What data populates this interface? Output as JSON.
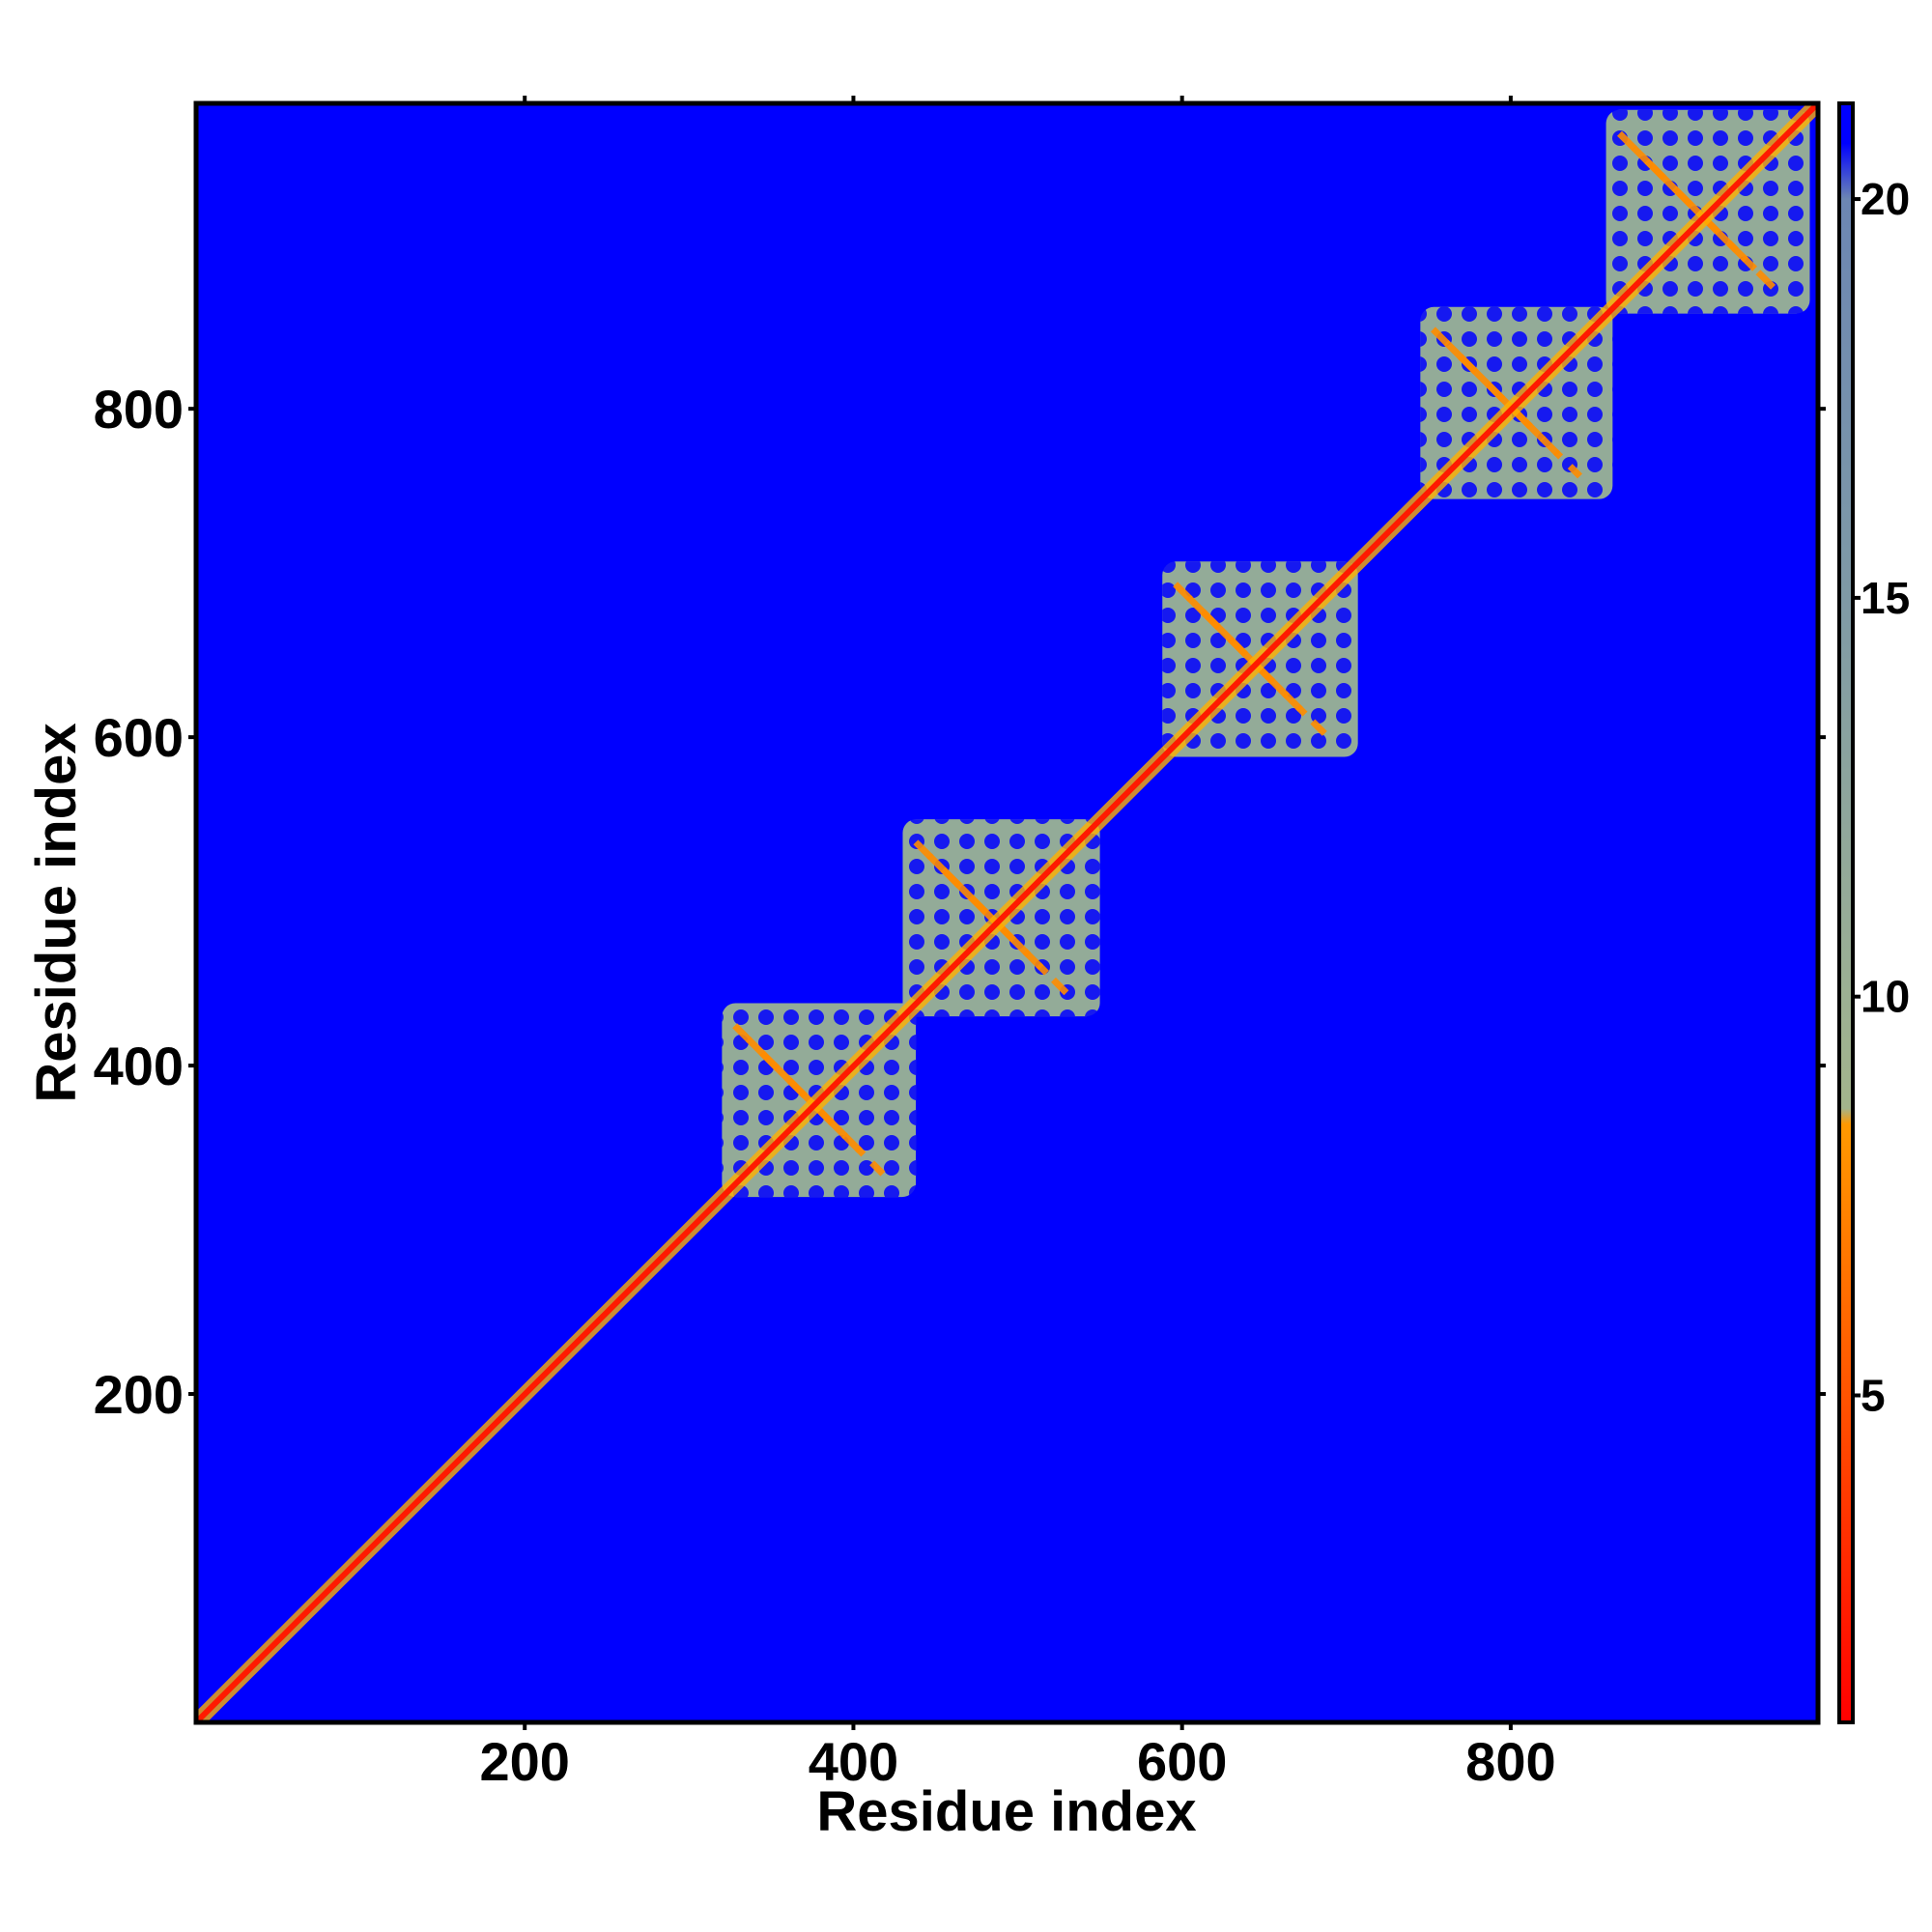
{
  "chart_data": {
    "type": "heatmap",
    "x_label": "Residue index",
    "y_label": "Residue index",
    "xlim": [
      0,
      987
    ],
    "ylim": [
      0,
      986
    ],
    "xticks": [
      200,
      400,
      600,
      800
    ],
    "yticks": [
      200,
      400,
      600,
      800
    ],
    "background_color": "#0000ff",
    "diagonal_color": "#ff1a00",
    "domain_color": "#93ab98",
    "domains": [
      [
        320,
        438
      ],
      [
        430,
        550
      ],
      [
        588,
        707
      ],
      [
        745,
        862
      ],
      [
        858,
        982
      ]
    ],
    "colorbar": {
      "lim": [
        0.9,
        21.2
      ],
      "ticks": [
        5,
        10,
        15,
        20
      ],
      "stops": [
        {
          "value": 0.9,
          "color": "#ff0000"
        },
        {
          "value": 8.4,
          "color": "#ff9900"
        },
        {
          "value": 8.6,
          "color": "#a3b48c"
        },
        {
          "value": 10,
          "color": "#9cb093"
        },
        {
          "value": 15,
          "color": "#7f9aa6"
        },
        {
          "value": 20,
          "color": "#6c86b3"
        },
        {
          "value": 20.7,
          "color": "#0000ff"
        }
      ]
    }
  }
}
